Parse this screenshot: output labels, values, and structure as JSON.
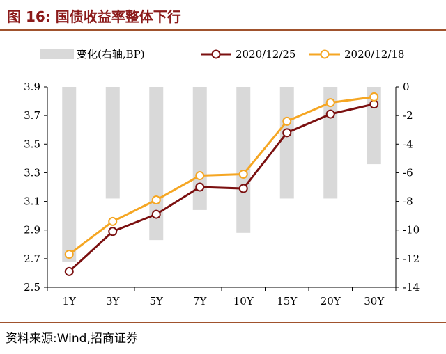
{
  "title": "图 16:  国债收益率整体下行",
  "source": "资料来源:Wind,招商证券",
  "chart_data": {
    "type": "line",
    "categories": [
      "1Y",
      "3Y",
      "5Y",
      "7Y",
      "10Y",
      "15Y",
      "20Y",
      "30Y"
    ],
    "series": [
      {
        "name": "变化(右轴,BP)",
        "kind": "bar",
        "axis": "right",
        "color": "#d9d9d9",
        "values": [
          -12.2,
          -7.8,
          -10.7,
          -8.6,
          -10.2,
          -7.8,
          -7.8,
          -5.4
        ]
      },
      {
        "name": "2020/12/25",
        "kind": "line",
        "axis": "left",
        "color": "#7b1010",
        "values": [
          2.61,
          2.89,
          3.01,
          3.2,
          3.19,
          3.58,
          3.71,
          3.78
        ]
      },
      {
        "name": "2020/12/18",
        "kind": "line",
        "axis": "left",
        "color": "#f5a623",
        "values": [
          2.73,
          2.96,
          3.11,
          3.28,
          3.29,
          3.66,
          3.79,
          3.83
        ]
      }
    ],
    "ylim_left": [
      2.5,
      3.9
    ],
    "yticks_left": [
      "3.9",
      "3.7",
      "3.5",
      "3.3",
      "3.1",
      "2.9",
      "2.7",
      "2.5"
    ],
    "ylim_right": [
      -14,
      0
    ],
    "yticks_right": [
      "0",
      "-2",
      "-4",
      "-6",
      "-8",
      "-10",
      "-12",
      "-14"
    ],
    "legend_position": "top",
    "grid": false
  }
}
